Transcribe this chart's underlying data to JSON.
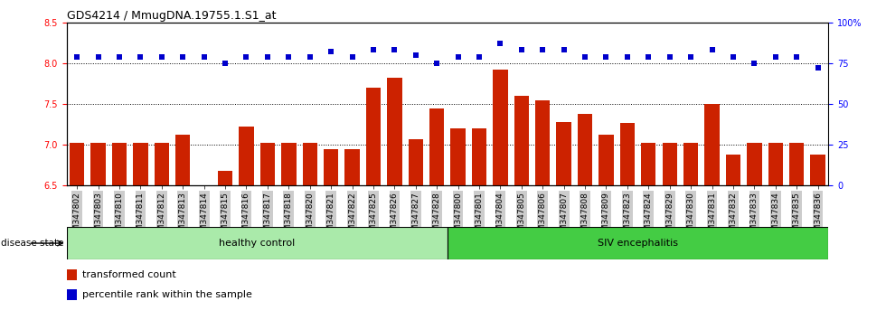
{
  "title": "GDS4214 / MmugDNA.19755.1.S1_at",
  "categories": [
    "GSM347802",
    "GSM347803",
    "GSM347810",
    "GSM347811",
    "GSM347812",
    "GSM347813",
    "GSM347814",
    "GSM347815",
    "GSM347816",
    "GSM347817",
    "GSM347818",
    "GSM347820",
    "GSM347821",
    "GSM347822",
    "GSM347825",
    "GSM347826",
    "GSM347827",
    "GSM347828",
    "GSM347800",
    "GSM347801",
    "GSM347804",
    "GSM347805",
    "GSM347806",
    "GSM347807",
    "GSM347808",
    "GSM347809",
    "GSM347823",
    "GSM347824",
    "GSM347829",
    "GSM347830",
    "GSM347831",
    "GSM347832",
    "GSM347833",
    "GSM347834",
    "GSM347835",
    "GSM347836"
  ],
  "bar_values": [
    7.02,
    7.02,
    7.02,
    7.02,
    7.02,
    7.12,
    6.5,
    6.68,
    7.22,
    7.02,
    7.02,
    7.02,
    6.95,
    6.95,
    7.7,
    7.82,
    7.07,
    7.44,
    7.2,
    7.2,
    7.92,
    7.6,
    7.55,
    7.28,
    7.38,
    7.12,
    7.27,
    7.02,
    7.02,
    7.02,
    7.5,
    6.88,
    7.02,
    7.02,
    7.02,
    6.88
  ],
  "scatter_values": [
    79,
    79,
    79,
    79,
    79,
    79,
    79,
    75,
    79,
    79,
    79,
    79,
    82,
    79,
    83,
    83,
    80,
    75,
    79,
    79,
    87,
    83,
    83,
    83,
    79,
    79,
    79,
    79,
    79,
    79,
    83,
    79,
    75,
    79,
    79,
    72
  ],
  "healthy_control_count": 18,
  "ylim_left": [
    6.5,
    8.5
  ],
  "ylim_right": [
    0,
    100
  ],
  "yticks_left": [
    6.5,
    7.0,
    7.5,
    8.0,
    8.5
  ],
  "yticks_right": [
    0,
    25,
    50,
    75,
    100
  ],
  "bar_color": "#cc2200",
  "scatter_color": "#0000cc",
  "healthy_color": "#aaeaaa",
  "siv_color": "#44cc44",
  "bg_color": "#cccccc",
  "dotted_line_color": "black",
  "label_transformed": "transformed count",
  "label_percentile": "percentile rank within the sample",
  "disease_state_label": "disease state",
  "healthy_label": "healthy control",
  "siv_label": "SIV encephalitis",
  "title_fontsize": 9,
  "tick_fontsize": 7,
  "legend_fontsize": 8
}
